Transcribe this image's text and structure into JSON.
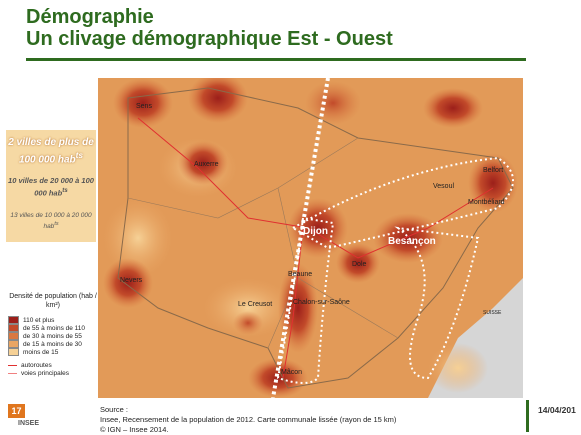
{
  "header": {
    "title": "Démographie",
    "subtitle": "Un clivage démographique Est - Ouest"
  },
  "sidebar": {
    "big": {
      "text": "2 villes de plus de 100 000 hab",
      "sup": "ts"
    },
    "mid": {
      "text": "10 villes de 20 000 à 100 000 hab",
      "sup": "ts"
    },
    "small": {
      "text": "13 villes de 10 000 à 20 000 hab",
      "sup": "ts"
    }
  },
  "legend": {
    "title": "Densité de population (hab / km²)",
    "items": [
      {
        "label": "110 et plus",
        "color": "#9c1f1a"
      },
      {
        "label": "de 55 à moins de 110",
        "color": "#c24a2a"
      },
      {
        "label": "de 30 à moins de 55",
        "color": "#d97841"
      },
      {
        "label": "de 15 à moins de 30",
        "color": "#e9a563"
      },
      {
        "label": "moins de 15",
        "color": "#f6d196"
      }
    ],
    "lines": [
      {
        "label": "autoroutes",
        "color": "#e03030"
      },
      {
        "label": "voies principales",
        "color": "#f08080"
      }
    ]
  },
  "map": {
    "cities": [
      "Sens",
      "Auxerre",
      "Nevers",
      "Dijon",
      "Besançon",
      "Dole",
      "Beaune",
      "Le Creusot",
      "Chalon-sur-Saône",
      "Mâcon",
      "Belfort",
      "Montbéliard",
      "Vesoul",
      "SUISSE"
    ]
  },
  "footer": {
    "source_label": "Source :",
    "source": "Insee, Recensement de la population de 2012. Carte communale lissée (rayon de 15 km)",
    "credit": "© IGN – Insee 2014.",
    "page": "17",
    "logo": "INSEE",
    "date": "14/04/201"
  }
}
